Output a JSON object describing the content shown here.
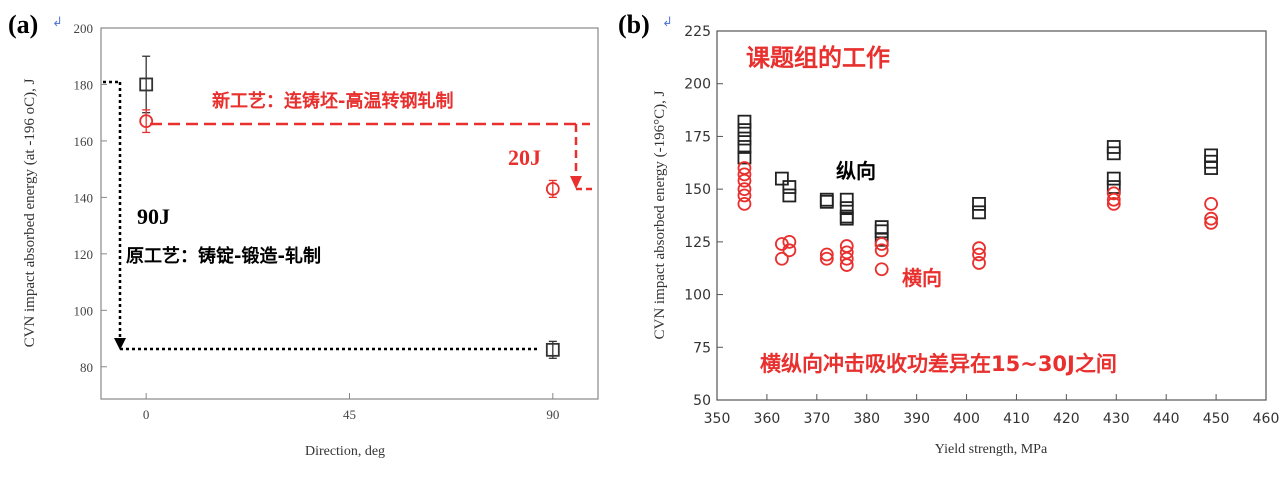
{
  "chart_data": [
    {
      "type": "scatter",
      "panel_label": "(a)",
      "panel_mark": "↲",
      "title": "",
      "xlabel": "Direction, deg",
      "ylabel": "CVN impact absorbed energy (at -196 oC), J",
      "xlim": [
        -10,
        100
      ],
      "ylim": [
        70,
        200
      ],
      "x_ticks": [
        0,
        45,
        90
      ],
      "x_tick_labels": [
        "0",
        "45",
        "90"
      ],
      "y_ticks": [
        80,
        100,
        120,
        140,
        160,
        180,
        200
      ],
      "y_tick_labels": [
        "80",
        "100",
        "120",
        "140",
        "160",
        "180",
        "200"
      ],
      "grid": false,
      "series": [
        {
          "name": "原工艺",
          "marker": "square",
          "color": "#333333",
          "x": [
            0,
            90
          ],
          "y": [
            180,
            86
          ],
          "err": [
            10,
            3
          ]
        },
        {
          "name": "新工艺",
          "marker": "circle",
          "color": "#e8302e",
          "x": [
            0,
            90
          ],
          "y": [
            167,
            143
          ],
          "err": [
            4,
            3
          ]
        }
      ],
      "annotations": {
        "new_process": "新工艺：连铸坯-高温转钢轧制",
        "old_process": "原工艺：铸锭-锻造-轧制",
        "diff_new": "20J",
        "diff_old": "90J"
      }
    },
    {
      "type": "scatter",
      "panel_label": "(b)",
      "panel_mark": "↲",
      "title": "课题组的工作",
      "xlabel": "Yield strength, MPa",
      "ylabel": "CVN impact absorbed energy (-196°C), J",
      "xlim": [
        350,
        460
      ],
      "ylim": [
        50,
        225
      ],
      "x_ticks": [
        350,
        360,
        370,
        380,
        390,
        400,
        410,
        420,
        430,
        440,
        450,
        460
      ],
      "x_tick_labels": [
        "350",
        "360",
        "370",
        "380",
        "390",
        "400",
        "410",
        "420",
        "430",
        "440",
        "450",
        "460"
      ],
      "y_ticks": [
        50,
        75,
        100,
        125,
        150,
        175,
        200,
        225
      ],
      "y_tick_labels": [
        "50",
        "75",
        "100",
        "125",
        "150",
        "175",
        "200",
        "225"
      ],
      "grid": false,
      "series": [
        {
          "name": "纵向",
          "marker": "square",
          "color": "#222222",
          "points": [
            [
              355.5,
              182
            ],
            [
              355.5,
              178
            ],
            [
              355.5,
              174
            ],
            [
              355.5,
              170
            ],
            [
              355.5,
              165
            ],
            [
              363,
              155
            ],
            [
              364.5,
              151
            ],
            [
              364.5,
              147
            ],
            [
              372,
              145
            ],
            [
              372,
              144
            ],
            [
              376,
              145
            ],
            [
              376,
              141
            ],
            [
              376,
              137
            ],
            [
              376,
              136
            ],
            [
              383,
              132
            ],
            [
              383,
              130
            ],
            [
              383,
              126
            ],
            [
              402.5,
              143
            ],
            [
              402.5,
              139
            ],
            [
              429.5,
              170
            ],
            [
              429.5,
              167
            ],
            [
              429.5,
              155
            ],
            [
              429.5,
              151
            ],
            [
              449,
              166
            ],
            [
              449,
              163
            ],
            [
              449,
              160
            ]
          ]
        },
        {
          "name": "横向",
          "marker": "circle",
          "color": "#e8302e",
          "points": [
            [
              355.5,
              160
            ],
            [
              355.5,
              157
            ],
            [
              355.5,
              154
            ],
            [
              355.5,
              150
            ],
            [
              355.5,
              147
            ],
            [
              355.5,
              143
            ],
            [
              363,
              124
            ],
            [
              363,
              117
            ],
            [
              364.5,
              125
            ],
            [
              364.5,
              121
            ],
            [
              372,
              119
            ],
            [
              372,
              117
            ],
            [
              376,
              123
            ],
            [
              376,
              120
            ],
            [
              376,
              117
            ],
            [
              376,
              114
            ],
            [
              383,
              124
            ],
            [
              383,
              121
            ],
            [
              383,
              112
            ],
            [
              402.5,
              122
            ],
            [
              402.5,
              119
            ],
            [
              402.5,
              115
            ],
            [
              429.5,
              148
            ],
            [
              429.5,
              145
            ],
            [
              429.5,
              143
            ],
            [
              449,
              143
            ],
            [
              449,
              136
            ],
            [
              449,
              134
            ]
          ]
        }
      ],
      "annotations": {
        "longitudinal": "纵向",
        "transverse": "横向",
        "note": "横纵向冲击吸收功差异在15~30J之间"
      }
    }
  ]
}
